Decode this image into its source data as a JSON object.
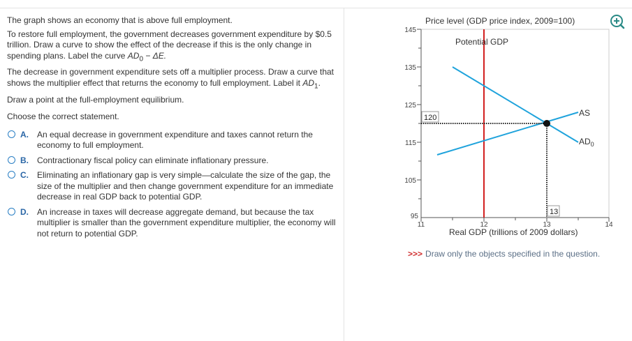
{
  "question": {
    "p1": "The graph shows an economy that is above full employment.",
    "p2_main": "To restore full employment, the government decreases government expenditure by $0.5 trillion. Draw a curve to show the effect of the decrease if this is the only change in spending plans. Label the curve ",
    "p2_curve": "AD",
    "p2_sub": "0",
    "p2_tail": " − ΔE.",
    "p3_main": "The decrease in government expenditure sets off a multiplier process. Draw a curve that shows the multiplier effect that returns the economy to full employment. Label it ",
    "p3_curve": "AD",
    "p3_sub": "1",
    "p3_tail": ".",
    "p4": "Draw a point at the full-employment equilibrium.",
    "prompt": "Choose the correct statement."
  },
  "options": [
    {
      "letter": "A.",
      "text": "An equal decrease in government expenditure and taxes cannot return the economy to full employment."
    },
    {
      "letter": "B.",
      "text": "Contractionary fiscal policy can eliminate inflationary pressure."
    },
    {
      "letter": "C.",
      "text": "Eliminating an inflationary gap is very simple—calculate the size of the gap, the size of the multiplier and then change government expenditure for an immediate decrease in real GDP back to potential GDP."
    },
    {
      "letter": "D.",
      "text": "An increase in taxes will decrease aggregate demand, but because the tax multiplier is smaller than the government expenditure multiplier, the economy will not return to potential GDP."
    }
  ],
  "graph": {
    "y_axis_title": "Price level (GDP price index, 2009=100)",
    "x_axis_title": "Real GDP (trillions of 2009 dollars)",
    "potential_label": "Potential GDP",
    "as_label": "AS",
    "ad_label": "AD",
    "ad_sub": "0",
    "eq_price_label": "120",
    "eq_gdp_label": "13",
    "y_ticks": [
      "145",
      "135",
      "125",
      "115",
      "105",
      "95"
    ],
    "x_ticks": [
      "11",
      "12",
      "13",
      "14"
    ],
    "colors": {
      "curve": "#1fa3dc",
      "potential": "#d21f1f",
      "axis": "#555555"
    },
    "icon": "zoom-in-icon"
  },
  "footer_note": {
    "arrows": ">>>",
    "text": "Draw only the objects specified in the question."
  }
}
